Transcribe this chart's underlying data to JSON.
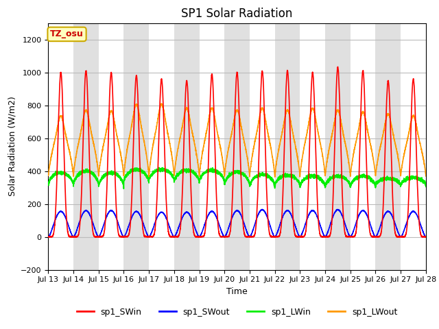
{
  "title": "SP1 Solar Radiation",
  "ylabel": "Solar Radiation (W/m2)",
  "xlabel": "Time",
  "ylim": [
    -200,
    1300
  ],
  "yticks": [
    -200,
    0,
    200,
    400,
    600,
    800,
    1000,
    1200
  ],
  "start_day": 13,
  "end_day": 28,
  "n_days": 15,
  "points_per_day": 288,
  "background_color": "#ffffff",
  "plot_bg_color": "#ffffff",
  "band_color_odd": "#e0e0e0",
  "band_color_even": "#ffffff",
  "series_colors": {
    "SWin": "#ff0000",
    "SWout": "#0000ff",
    "LWin": "#00ee00",
    "LWout": "#ff9900"
  },
  "legend_labels": [
    "sp1_SWin",
    "sp1_SWout",
    "sp1_LWin",
    "sp1_LWout"
  ],
  "tz_label": "TZ_osu",
  "tz_box_color": "#ffffc0",
  "tz_border_color": "#ccaa00",
  "tz_text_color": "#cc0000",
  "grid_color": "#bbbbbb",
  "tick_label_fontsize": 8,
  "axis_label_fontsize": 9,
  "title_fontsize": 12,
  "legend_fontsize": 9,
  "line_width": 1.2,
  "sw_peaks": [
    1000,
    1010,
    1000,
    980,
    960,
    950,
    990,
    1000,
    1010,
    1010,
    1000,
    1030,
    1010,
    950,
    960
  ],
  "sw_out_peaks": [
    155,
    160,
    160,
    155,
    150,
    150,
    155,
    160,
    165,
    160,
    160,
    165,
    160,
    155,
    155
  ],
  "lw_out_peaks": [
    640,
    670,
    665,
    700,
    700,
    680,
    680,
    670,
    680,
    670,
    680,
    670,
    660,
    650,
    640
  ],
  "lw_out_night": [
    370,
    375,
    370,
    370,
    375,
    372,
    370,
    370,
    370,
    368,
    370,
    370,
    370,
    370,
    370
  ],
  "lw_in_base": [
    310,
    310,
    300,
    330,
    340,
    330,
    330,
    310,
    300,
    305,
    300,
    300,
    300,
    310,
    310
  ],
  "lw_in_peak": [
    390,
    400,
    390,
    410,
    410,
    405,
    405,
    395,
    380,
    375,
    370,
    370,
    370,
    355,
    360
  ]
}
